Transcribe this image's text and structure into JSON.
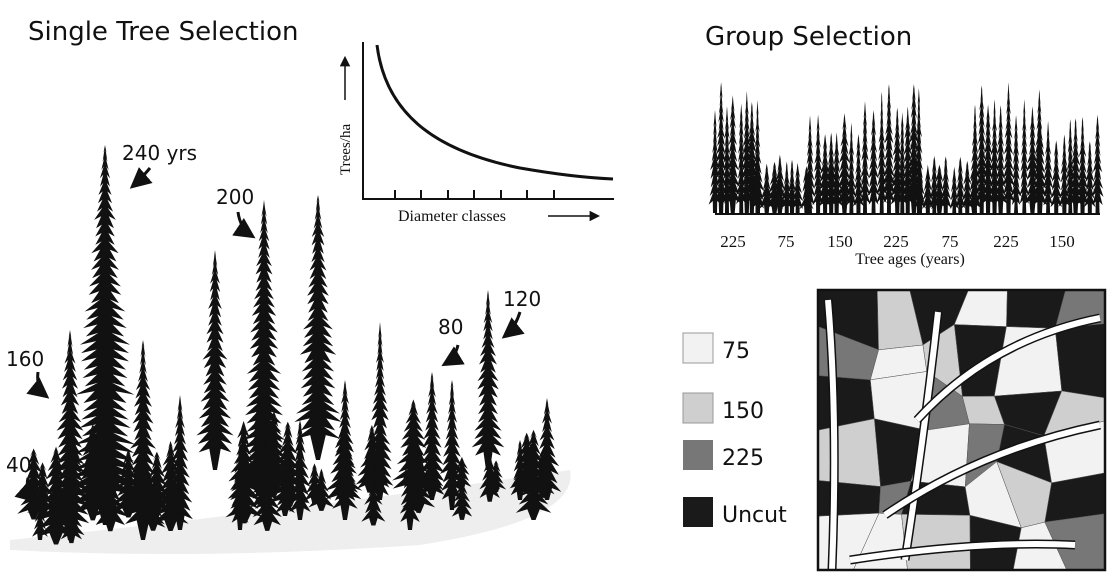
{
  "left": {
    "title": "Single Tree Selection",
    "age_labels": [
      "240 yrs",
      "200",
      "160",
      "120",
      "80",
      "40"
    ],
    "inset": {
      "y_label": "Trees/ha",
      "x_label": "Diameter classes"
    }
  },
  "right": {
    "title": "Group Selection",
    "age_labels": [
      "225",
      "75",
      "150",
      "225",
      "75",
      "225",
      "150"
    ],
    "axis_label": "Tree ages (years)",
    "legend": [
      "75",
      "150",
      "225",
      "Uncut"
    ]
  }
}
